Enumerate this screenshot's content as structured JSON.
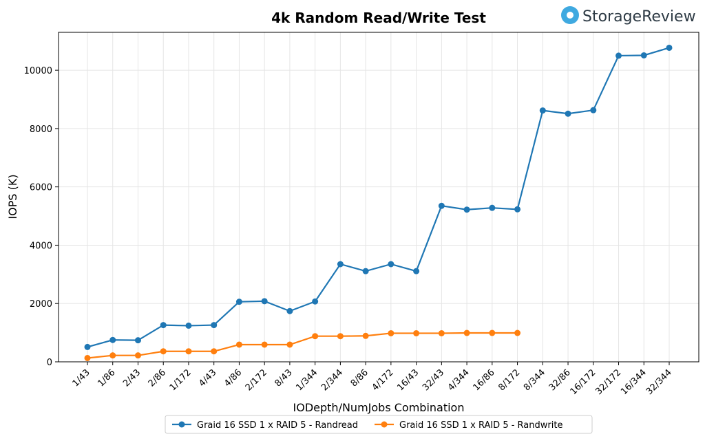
{
  "chart_data": {
    "type": "line",
    "title": "4k Random Read/Write Test",
    "brand": "StorageReview",
    "x_label": "IODepth/NumJobs Combination",
    "y_label": "IOPS (K)",
    "categories": [
      "1/43",
      "1/86",
      "2/43",
      "2/86",
      "1/172",
      "4/43",
      "4/86",
      "2/172",
      "8/43",
      "1/344",
      "2/344",
      "8/86",
      "4/172",
      "16/43",
      "32/43",
      "4/344",
      "16/86",
      "8/172",
      "8/344",
      "32/86",
      "16/172",
      "32/172",
      "16/344",
      "32/344"
    ],
    "series": [
      {
        "name": "Graid 16 SSD 1 x RAID 5 - Randread",
        "color": "#1f77b4",
        "values": [
          510,
          750,
          740,
          1260,
          1240,
          1260,
          2060,
          2080,
          1740,
          2070,
          3350,
          3110,
          3350,
          3110,
          5350,
          5220,
          5280,
          5230,
          8620,
          8510,
          8630,
          10500,
          10510,
          10770
        ]
      },
      {
        "name": "Graid 16 SSD 1 x RAID 5 - Randwrite",
        "color": "#ff7f0e",
        "values": [
          130,
          220,
          220,
          360,
          360,
          360,
          590,
          590,
          590,
          880,
          880,
          890,
          980,
          980,
          980,
          990,
          990,
          990,
          null,
          null,
          null,
          null,
          null,
          null
        ]
      }
    ],
    "ylim": [
      0,
      11300
    ],
    "yticks": [
      0,
      2000,
      4000,
      6000,
      8000,
      10000
    ],
    "grid": true,
    "legend": "bottom"
  }
}
